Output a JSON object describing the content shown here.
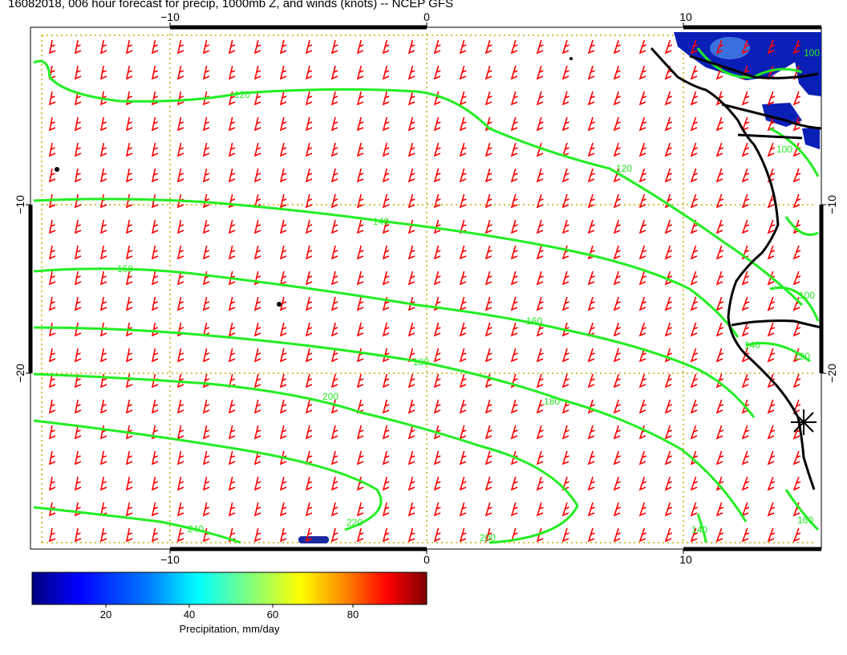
{
  "title": "16082018, 006 hour forecast for precip, 1000mb Z, and winds (knots) -- NCEP GFS",
  "axes": {
    "top_ticks": [
      "−10",
      "0",
      "10"
    ],
    "bottom_ticks": [
      "−10",
      "0",
      "10"
    ],
    "left_ticks": [
      "−10",
      "−20"
    ],
    "right_ticks": [
      "−10",
      "−20"
    ]
  },
  "contour_labels": [
    "120",
    "140",
    "160",
    "180",
    "200",
    "220",
    "240",
    "200",
    "180",
    "160",
    "140",
    "120",
    "100",
    "100",
    "120",
    "140",
    "160",
    "120",
    "100"
  ],
  "colorbar": {
    "title": "Precipitation, mm/day",
    "ticks": [
      "20",
      "40",
      "60",
      "80"
    ],
    "colors": [
      "#00007f",
      "#0000ff",
      "#007fff",
      "#00ffff",
      "#7fff7f",
      "#ffff00",
      "#ff7f00",
      "#ff0000",
      "#7f0000"
    ]
  },
  "colors": {
    "contour": "#22ee22",
    "barb": "#ff0000",
    "grid": "#c8a800",
    "coast": "#000000"
  }
}
